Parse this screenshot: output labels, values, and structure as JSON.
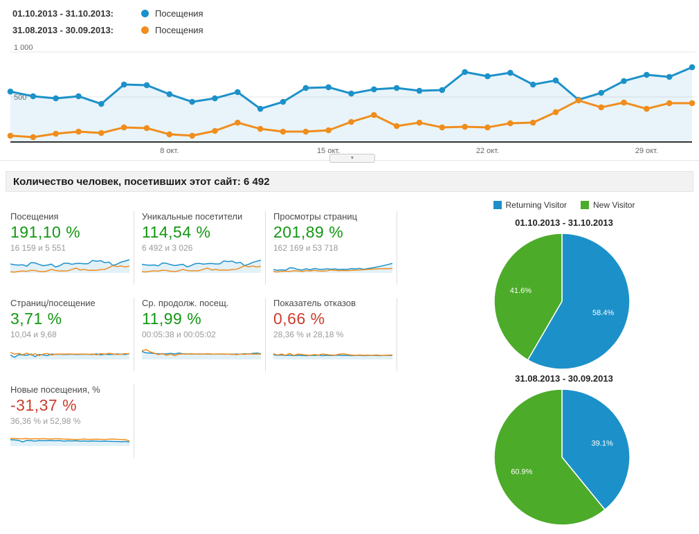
{
  "colors": {
    "blue": "#1c91c9",
    "orange": "#f08d1d",
    "green": "#4cab29",
    "up_text": "#129612",
    "down_text": "#cc3d2e",
    "area_fill": "rgba(28,145,201,0.10)",
    "grid": "#e6e6e6",
    "axis_text": "#666666"
  },
  "timeline_legend": {
    "rows": [
      {
        "date_range": "01.10.2013 - 31.10.2013:",
        "metric": "Посещения",
        "color": "#1c91c9"
      },
      {
        "date_range": "31.08.2013 - 30.09.2013:",
        "metric": "Посещения",
        "color": "#f08d1d"
      }
    ]
  },
  "collapse_button": {
    "icon": "▼"
  },
  "summary_bar": {
    "text": "Количество человек, посетивших этот сайт: 6 492"
  },
  "metric_cards": [
    {
      "title": "Посещения",
      "value": "191,10 %",
      "value_color": "#129612",
      "sub": "16 159 и 5 551",
      "spark": {
        "blue": [
          56,
          51,
          49,
          51,
          42,
          64,
          63,
          53,
          45,
          49,
          55,
          37,
          45,
          60,
          61,
          54,
          59,
          60,
          57,
          58,
          78,
          73,
          77,
          64,
          68,
          47,
          55,
          68,
          75,
          83
        ],
        "orange": [
          7,
          5,
          9,
          12,
          10,
          16,
          15,
          9,
          7,
          12,
          22,
          15,
          12,
          12,
          13,
          22,
          30,
          18,
          22,
          16,
          17,
          16,
          21,
          22,
          33,
          46,
          39,
          44,
          37,
          43
        ]
      }
    },
    {
      "title": "Уникальные посетители",
      "value": "114,54 %",
      "value_color": "#129612",
      "sub": "6 492 и 3 026",
      "spark": {
        "blue": [
          54,
          50,
          48,
          50,
          44,
          62,
          60,
          52,
          46,
          50,
          54,
          38,
          46,
          58,
          60,
          55,
          58,
          59,
          56,
          57,
          75,
          71,
          74,
          62,
          66,
          46,
          54,
          66,
          73,
          80
        ],
        "orange": [
          8,
          6,
          10,
          13,
          11,
          17,
          15,
          10,
          8,
          13,
          22,
          15,
          13,
          13,
          14,
          23,
          30,
          18,
          22,
          17,
          18,
          17,
          21,
          22,
          33,
          45,
          38,
          43,
          37,
          42
        ]
      }
    },
    {
      "title": "Просмотры страниц",
      "value": "201,89 %",
      "value_color": "#129612",
      "sub": "162 169 и 53 718",
      "spark": {
        "blue": [
          22,
          16,
          19,
          17,
          32,
          30,
          21,
          18,
          26,
          19,
          28,
          23,
          21,
          26,
          23,
          25,
          21,
          23,
          22,
          27,
          25,
          29,
          23,
          27,
          31,
          36,
          41,
          47,
          53,
          60
        ],
        "orange": [
          8,
          6,
          9,
          11,
          9,
          13,
          12,
          8,
          14,
          12,
          16,
          12,
          11,
          13,
          19,
          16,
          14,
          15,
          14,
          16,
          17,
          18,
          20,
          22,
          24,
          25,
          26,
          27,
          26,
          28
        ]
      }
    },
    {
      "title": "Страниц/посещение",
      "value": "3,71 %",
      "value_color": "#129612",
      "sub": "10,04 и 9,68",
      "spark": {
        "blue": [
          28,
          14,
          30,
          28,
          26,
          34,
          18,
          32,
          28,
          24,
          34,
          32,
          33,
          31,
          32,
          33,
          31,
          32,
          33,
          32,
          31,
          35,
          29,
          33,
          31,
          32,
          35,
          33,
          31,
          37
        ],
        "orange": [
          44,
          34,
          38,
          30,
          40,
          28,
          36,
          24,
          34,
          38,
          28,
          33,
          34,
          33,
          35,
          34,
          33,
          34,
          33,
          32,
          34,
          29,
          37,
          33,
          39,
          35,
          31,
          33,
          37,
          35
        ]
      }
    },
    {
      "title": "Ср. продолж. посещ.",
      "value": "11,99 %",
      "value_color": "#129612",
      "sub": "00:05:38 и 00:05:02",
      "spark": {
        "blue": [
          50,
          42,
          40,
          38,
          36,
          35,
          36,
          38,
          35,
          40,
          36,
          35,
          34,
          34,
          35,
          34,
          34,
          33,
          34,
          34,
          33,
          34,
          32,
          34,
          33,
          36,
          34,
          38,
          40,
          36
        ],
        "orange": [
          55,
          62,
          48,
          40,
          30,
          38,
          26,
          34,
          24,
          33,
          35,
          33,
          36,
          34,
          33,
          34,
          36,
          34,
          33,
          34,
          35,
          33,
          34,
          30,
          34,
          32,
          36,
          33,
          34,
          33
        ]
      }
    },
    {
      "title": "Показатель отказов",
      "value": "0,66 %",
      "value_color": "#cc3d2e",
      "sub": "28,36 % и 28,18 %",
      "spark": {
        "blue": [
          30,
          26,
          28,
          25,
          27,
          24,
          26,
          25,
          24,
          26,
          25,
          27,
          24,
          26,
          25,
          26,
          27,
          25,
          26,
          24,
          25,
          26,
          24,
          25,
          26,
          25,
          24,
          26,
          25,
          26
        ],
        "orange": [
          36,
          28,
          34,
          26,
          38,
          25,
          34,
          31,
          28,
          26,
          31,
          28,
          34,
          31,
          28,
          27,
          33,
          36,
          31,
          27,
          26,
          28,
          26,
          27,
          25,
          28,
          26,
          25,
          27,
          29
        ]
      }
    },
    {
      "title": "Новые посещения, %",
      "value": "-31,37 %",
      "value_color": "#cc3d2e",
      "sub": "36,36 % и 52,98 %",
      "spark": {
        "blue": [
          40,
          38,
          36,
          26,
          36,
          34,
          31,
          35,
          33,
          34,
          35,
          33,
          34,
          31,
          33,
          32,
          33,
          31,
          32,
          30,
          32,
          31,
          30,
          31,
          30,
          29,
          28,
          27,
          29,
          26
        ],
        "orange": [
          48,
          47,
          46,
          45,
          47,
          44,
          46,
          45,
          46,
          45,
          44,
          46,
          45,
          44,
          43,
          42,
          40,
          42,
          44,
          41,
          42,
          43,
          42,
          41,
          43,
          44,
          42,
          40,
          41,
          32
        ]
      }
    }
  ],
  "pie_section": {
    "legend": [
      {
        "label": "Returning Visitor",
        "color": "#1c91c9"
      },
      {
        "label": "New Visitor",
        "color": "#4cab29"
      }
    ],
    "titles": [
      "01.10.2013 - 31.10.2013",
      "31.08.2013 - 30.09.2013"
    ]
  },
  "chart_data": [
    {
      "type": "line",
      "title": "Посещения по дням",
      "ylim": [
        0,
        1000
      ],
      "y_ticks": [
        {
          "value": 1000,
          "label": "1 000"
        },
        {
          "value": 500,
          "label": "500"
        }
      ],
      "x_ticks": [
        {
          "index": 7,
          "label": "8 окт."
        },
        {
          "index": 14,
          "label": "15 окт."
        },
        {
          "index": 21,
          "label": "22 окт."
        },
        {
          "index": 28,
          "label": "29 окт."
        }
      ],
      "legend_position": "top-left",
      "grid": true,
      "series": [
        {
          "name": "01.10.2013 - 31.10.2013: Посещения",
          "color": "#1c91c9",
          "area": true,
          "values": [
            560,
            508,
            485,
            508,
            423,
            638,
            631,
            531,
            446,
            485,
            554,
            369,
            446,
            600,
            608,
            538,
            585,
            600,
            569,
            577,
            777,
            730,
            769,
            638,
            684,
            469,
            546,
            677,
            746,
            723,
            830
          ]
        },
        {
          "name": "31.08.2013 - 30.09.2013: Посещения",
          "color": "#f08d1d",
          "area": false,
          "values": [
            70,
            54,
            92,
            115,
            100,
            162,
            154,
            85,
            70,
            123,
            215,
            146,
            115,
            115,
            130,
            223,
            300,
            177,
            215,
            162,
            169,
            162,
            208,
            215,
            331,
            462,
            385,
            438,
            369,
            431,
            431
          ]
        }
      ]
    },
    {
      "type": "pie",
      "title": "01.10.2013 - 31.10.2013",
      "slices": [
        {
          "label": "Returning Visitor",
          "value": 58.4,
          "pct_label": "58.4%",
          "color": "#1c91c9"
        },
        {
          "label": "New Visitor",
          "value": 41.6,
          "pct_label": "41.6%",
          "color": "#4cab29"
        }
      ],
      "legend_position": "top"
    },
    {
      "type": "pie",
      "title": "31.08.2013 - 30.09.2013",
      "slices": [
        {
          "label": "Returning Visitor",
          "value": 39.1,
          "pct_label": "39.1%",
          "color": "#1c91c9"
        },
        {
          "label": "New Visitor",
          "value": 60.9,
          "pct_label": "60.9%",
          "color": "#4cab29"
        }
      ],
      "legend_position": "top"
    }
  ]
}
